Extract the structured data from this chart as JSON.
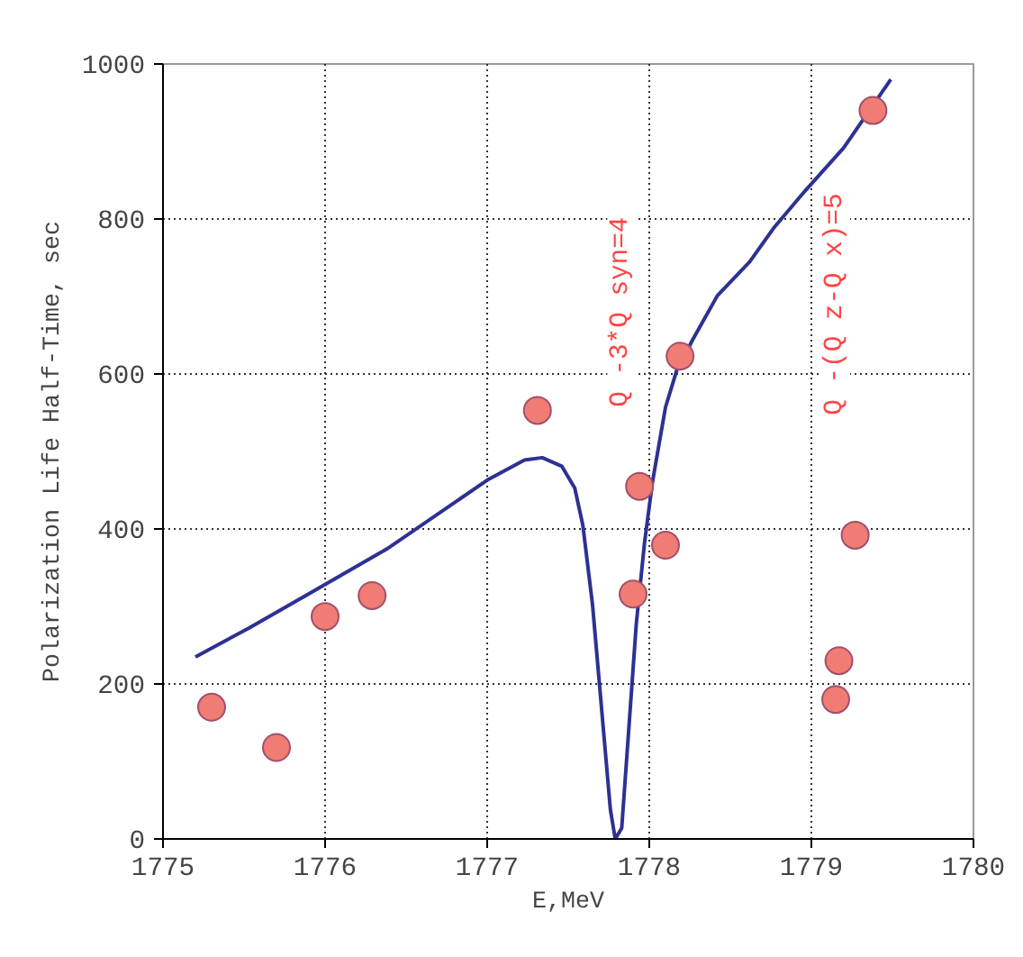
{
  "chart_data": {
    "type": "scatter",
    "xlabel": "E,MeV",
    "ylabel": "Polarization Life Half-Time, sec",
    "series": [
      {
        "color": "#f07c74",
        "marker": "circle",
        "x": [
          1775.3,
          1775.7,
          1776.0,
          1776.29,
          1777.31,
          1777.9,
          1777.94,
          1778.1,
          1778.19,
          1779.15,
          1779.17,
          1779.27,
          1779.38
        ],
        "values": [
          170,
          118,
          287,
          314,
          553,
          316,
          455,
          379,
          623,
          180,
          230,
          392,
          940
        ]
      },
      {
        "type": "line",
        "color": "#2e3192",
        "marker": "none",
        "x": [
          1775.2,
          1775.53,
          1775.88,
          1776.38,
          1777.0,
          1777.23,
          1777.34,
          1777.46,
          1777.54,
          1777.59,
          1777.65,
          1777.71,
          1777.76,
          1777.79,
          1777.83,
          1777.86,
          1777.92,
          1777.97,
          1778.02,
          1778.1,
          1778.17,
          1778.27,
          1778.42,
          1778.62,
          1778.77,
          1778.96,
          1779.2,
          1779.49
        ],
        "values": [
          235,
          272,
          314,
          374,
          463,
          489,
          492,
          481,
          453,
          405,
          302,
          158,
          38,
          0,
          14,
          102,
          278,
          381,
          461,
          557,
          605,
          645,
          701,
          745,
          789,
          836,
          892,
          980
        ]
      }
    ],
    "annotations": [
      "Q -3*Q syn=4",
      "Q -(Q z-Q x)=5"
    ],
    "xlim": [
      1775,
      1780
    ],
    "xticks": [
      1775,
      1776,
      1777,
      1778,
      1779,
      1780
    ],
    "ylim": [
      0,
      1000
    ],
    "yticks": [
      0,
      200,
      400,
      600,
      800,
      1000
    ],
    "grid": true
  }
}
